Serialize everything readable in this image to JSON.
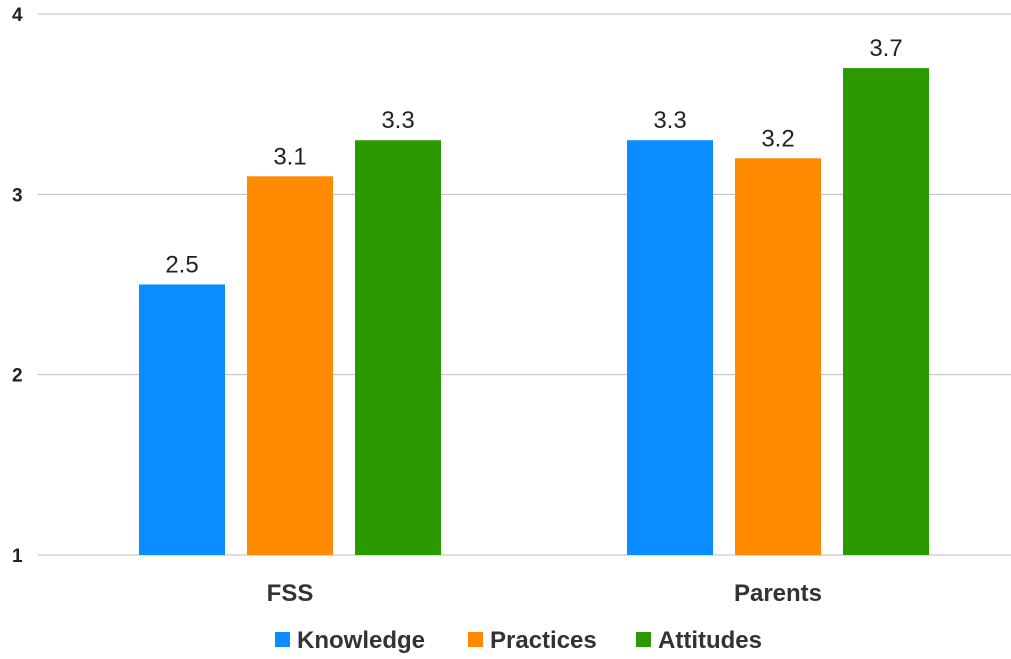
{
  "chart_data": {
    "type": "bar",
    "title": "",
    "xlabel": "",
    "ylabel": "",
    "categories": [
      "FSS",
      "Parents"
    ],
    "series": [
      {
        "name": "Knowledge",
        "values": [
          2.5,
          3.3
        ],
        "color": "#0a8eff",
        "labels": [
          "2.5",
          "3.3"
        ]
      },
      {
        "name": "Practices",
        "values": [
          3.1,
          3.2
        ],
        "color": "#ff8a00",
        "labels": [
          "3.1",
          "3.2"
        ]
      },
      {
        "name": "Attitudes",
        "values": [
          3.3,
          3.7
        ],
        "color": "#2a9a00",
        "labels": [
          "3.3",
          "3.7"
        ]
      }
    ],
    "ylim": [
      1,
      4
    ],
    "yticks": [
      1,
      2,
      3,
      4
    ],
    "ytick_labels": [
      "1",
      "2",
      "3",
      "4"
    ],
    "grid": true,
    "legend_position": "bottom"
  }
}
